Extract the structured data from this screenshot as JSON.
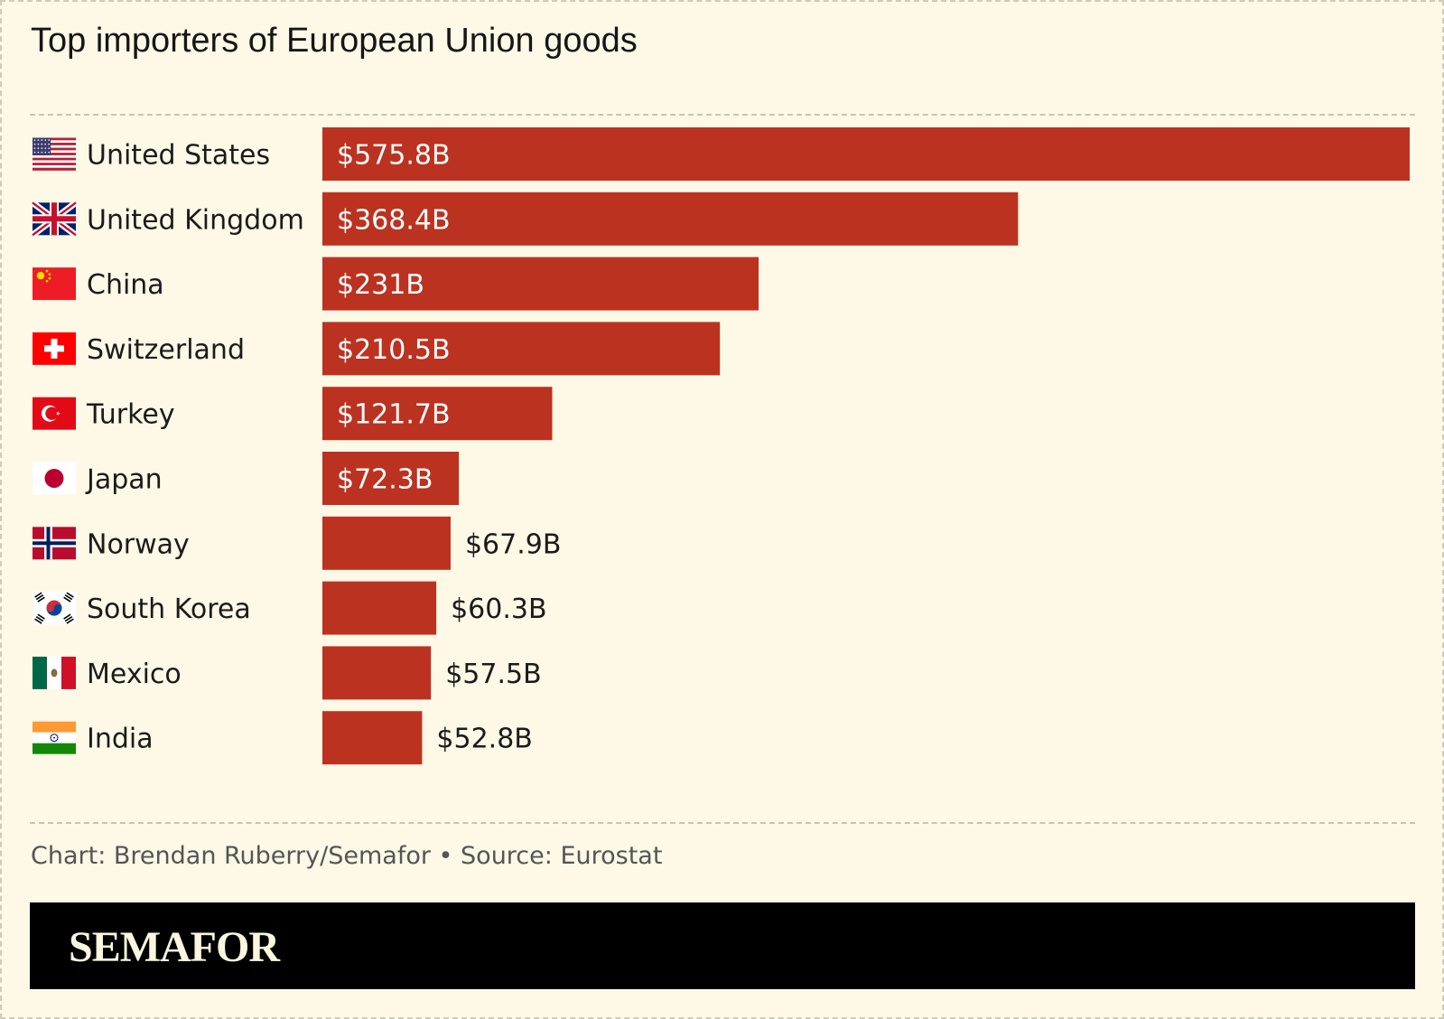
{
  "title": "Top importers of European Union goods",
  "credit": "Chart: Brendan Ruberry/Semafor • Source: Eurostat",
  "brand": "SEMAFOR",
  "colors": {
    "bar": "#bc3221",
    "background": "#fdf9e6"
  },
  "chart_data": {
    "type": "bar",
    "orientation": "horizontal",
    "title": "Top importers of European Union goods",
    "categories": [
      "United States",
      "United Kingdom",
      "China",
      "Switzerland",
      "Turkey",
      "Japan",
      "Norway",
      "South Korea",
      "Mexico",
      "India"
    ],
    "values": [
      575.8,
      368.4,
      231,
      210.5,
      121.7,
      72.3,
      67.9,
      60.3,
      57.5,
      52.8
    ],
    "value_labels": [
      "$575.8B",
      "$368.4B",
      "$231B",
      "$210.5B",
      "$121.7B",
      "$72.3B",
      "$67.9B",
      "$60.3B",
      "$57.5B",
      "$52.8B"
    ],
    "flags": [
      "us-flag-icon",
      "uk-flag-icon",
      "china-flag-icon",
      "switzerland-flag-icon",
      "turkey-flag-icon",
      "japan-flag-icon",
      "norway-flag-icon",
      "south-korea-flag-icon",
      "mexico-flag-icon",
      "india-flag-icon"
    ],
    "unit": "billion USD",
    "xlim": [
      0,
      575.8
    ],
    "xlabel": "",
    "ylabel": ""
  }
}
